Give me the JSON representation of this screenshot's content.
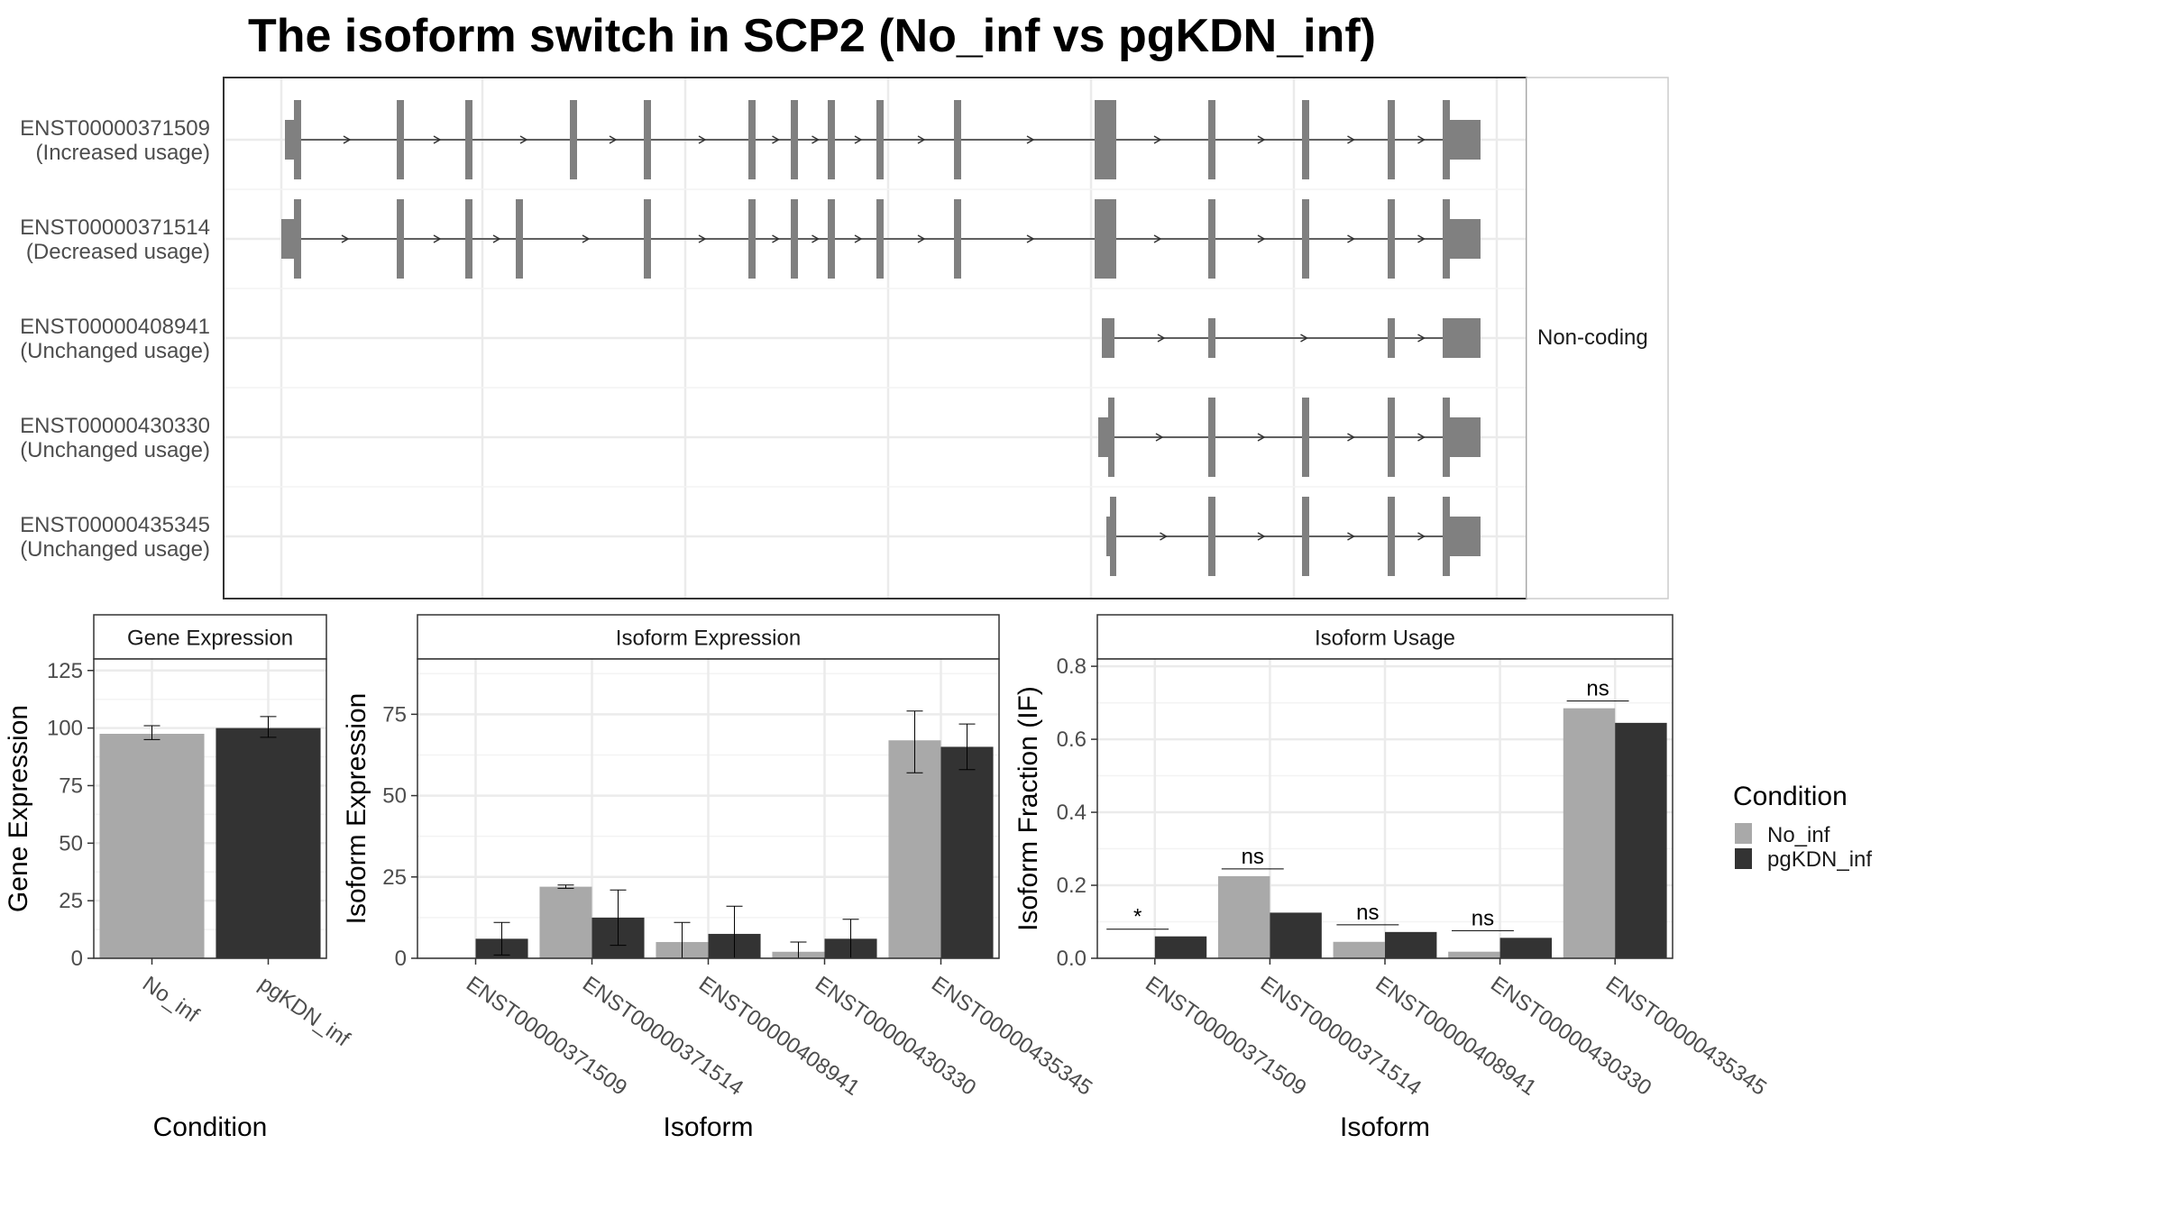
{
  "title": "The isoform switch in SCP2 (No_inf vs pgKDN_inf)",
  "colors": {
    "no_inf": "#a9a9a9",
    "pgkdn_inf": "#333333",
    "exon": "#808080",
    "grid": "#ebebeb",
    "panel_border": "#333333",
    "strip_fill": "#ffffff"
  },
  "transcripts": [
    {
      "id": "ENST00000371509",
      "label": "(Increased usage)"
    },
    {
      "id": "ENST00000371514",
      "label": "(Decreased usage)"
    },
    {
      "id": "ENST00000408941",
      "label": "(Unchanged usage)"
    },
    {
      "id": "ENST00000430330",
      "label": "(Unchanged usage)"
    },
    {
      "id": "ENST00000435345",
      "label": "(Unchanged usage)"
    }
  ],
  "legend_noncoding": "Non-coding",
  "legend_condition": {
    "title": "Condition",
    "items": [
      "No_inf",
      "pgKDN_inf"
    ]
  },
  "chart_data": [
    {
      "type": "bar",
      "title": "Gene Expression",
      "xlabel": "Condition",
      "ylabel": "Gene Expression",
      "ylim": [
        0,
        130
      ],
      "yticks": [
        0,
        25,
        50,
        75,
        100,
        125
      ],
      "categories": [
        "No_inf",
        "pgKDN_inf"
      ],
      "values": [
        97.5,
        100
      ],
      "errors": [
        [
          95,
          101
        ],
        [
          96,
          105
        ]
      ],
      "grid": true
    },
    {
      "type": "bar",
      "title": "Isoform Expression",
      "xlabel": "Isoform",
      "ylabel": "Isoform Expression",
      "ylim": [
        0,
        92
      ],
      "yticks": [
        0,
        25,
        50,
        75
      ],
      "categories": [
        "ENST00000371509",
        "ENST00000371514",
        "ENST00000408941",
        "ENST00000430330",
        "ENST00000435345"
      ],
      "series": [
        {
          "name": "No_inf",
          "values": [
            0,
            22,
            5,
            2,
            67
          ],
          "errors": [
            [
              0,
              0
            ],
            [
              21.5,
              22.5
            ],
            [
              0,
              11
            ],
            [
              0,
              5
            ],
            [
              57,
              76
            ]
          ]
        },
        {
          "name": "pgKDN_inf",
          "values": [
            6,
            12.5,
            7.5,
            6,
            65
          ],
          "errors": [
            [
              1,
              11
            ],
            [
              4,
              21
            ],
            [
              0,
              16
            ],
            [
              0,
              12
            ],
            [
              58,
              72
            ]
          ]
        }
      ],
      "grid": true
    },
    {
      "type": "bar",
      "title": "Isoform Usage",
      "xlabel": "Isoform",
      "ylabel": "Isoform Fraction (IF)",
      "ylim": [
        0,
        0.82
      ],
      "yticks": [
        0.0,
        0.2,
        0.4,
        0.6,
        0.8
      ],
      "ytick_labels": [
        "0.0",
        "0.2",
        "0.4",
        "0.6",
        "0.8"
      ],
      "categories": [
        "ENST00000371509",
        "ENST00000371514",
        "ENST00000408941",
        "ENST00000430330",
        "ENST00000435345"
      ],
      "series": [
        {
          "name": "No_inf",
          "values": [
            0,
            0.225,
            0.045,
            0.018,
            0.685
          ]
        },
        {
          "name": "pgKDN_inf",
          "values": [
            0.06,
            0.125,
            0.072,
            0.056,
            0.645
          ]
        }
      ],
      "significance": [
        "*",
        "ns",
        "ns",
        "ns",
        "ns"
      ],
      "grid": true
    }
  ]
}
